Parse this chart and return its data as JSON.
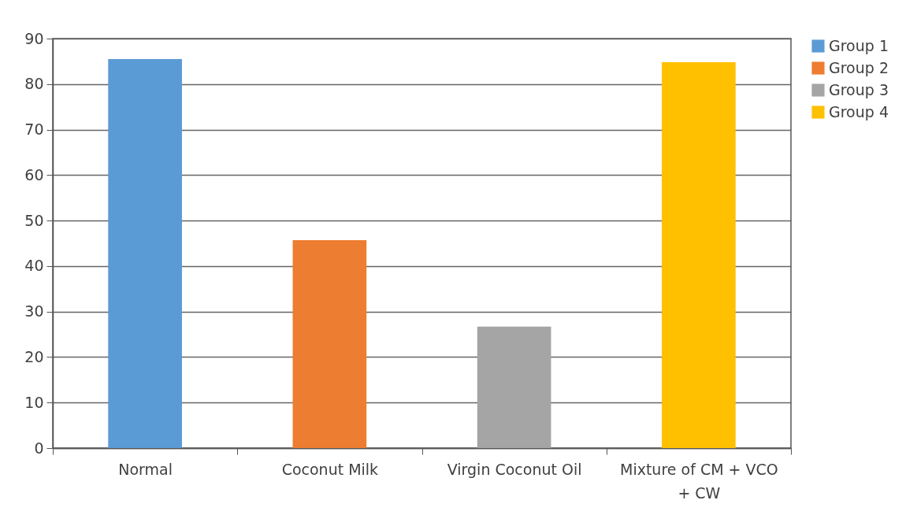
{
  "chart_data": {
    "type": "bar",
    "categories": [
      "Normal",
      "Coconut Milk",
      "Virgin Coconut Oil",
      "Mixture of CM + VCO + CW"
    ],
    "series": [
      {
        "name": "Group 1",
        "color": "#5b9bd5",
        "values": [
          85.5,
          null,
          null,
          null
        ]
      },
      {
        "name": "Group 2",
        "color": "#ed7d31",
        "values": [
          null,
          45.7,
          null,
          null
        ]
      },
      {
        "name": "Group 3",
        "color": "#a5a5a5",
        "values": [
          null,
          null,
          26.7,
          null
        ]
      },
      {
        "name": "Group 4",
        "color": "#ffc000",
        "values": [
          null,
          null,
          null,
          84.8
        ]
      }
    ],
    "ylim": [
      0,
      90
    ],
    "yticks": [
      0,
      10,
      20,
      30,
      40,
      50,
      60,
      70,
      80,
      90
    ],
    "grid": "y",
    "legend": "right"
  }
}
